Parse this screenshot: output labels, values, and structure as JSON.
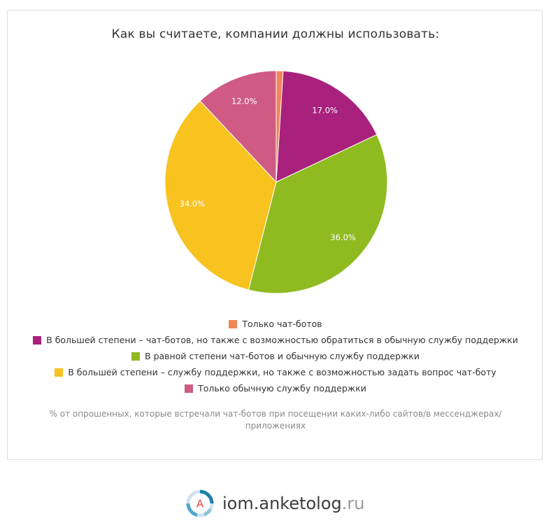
{
  "chart_data": {
    "type": "pie",
    "title": "Как вы считаете, компании должны использовать:",
    "categories": [
      "Только чат-ботов",
      "В большей степени – чат-ботов, но также с возможностью обратиться в обычную службу поддержки",
      "В равной степени чат-ботов и обычную службу поддержки",
      "В большей степени – службу поддержки, но также с возможностью задать вопрос чат-боту",
      "Только обычную службу поддержки"
    ],
    "values": [
      1.0,
      17.0,
      36.0,
      34.0,
      12.0
    ],
    "value_labels": [
      "",
      "17.0%",
      "36.0%",
      "34.0%",
      "12.0%"
    ],
    "colors": [
      "#f0865a",
      "#a8217c",
      "#8fbb21",
      "#f8c21f",
      "#cf5b85"
    ],
    "legend_position": "bottom",
    "note": "% от опрошенных, которые встречали чат-ботов при посещении каких-либо сайтов/в мессенджерах/приложениях"
  },
  "brand": {
    "logo_letter": "A",
    "name_main": "iom.anketolog",
    "name_tld": ".ru"
  }
}
